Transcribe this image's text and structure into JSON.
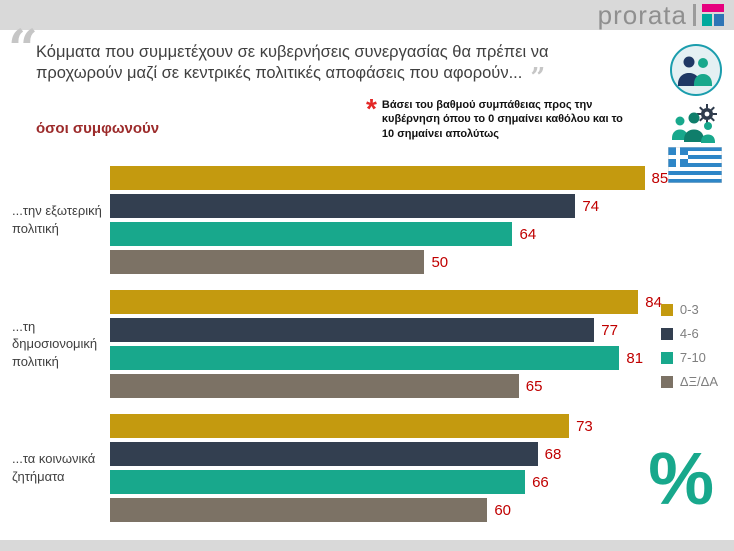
{
  "header": {
    "logo_text": "prorata"
  },
  "quote": {
    "open": "“",
    "close": "”",
    "text": "Κόμματα που συμμετέχουν σε κυβερνήσεις συνεργασίας θα πρέπει να προχωρούν μαζί σε κεντρικές πολιτικές αποφάσεις που αφορούν..."
  },
  "note": {
    "mark": "*",
    "text": "Βάσει του βαθμού συμπάθειας προς την κυβέρνηση όπου το 0 σημαίνει καθόλου και το 10 σημαίνει απολύτως"
  },
  "subtitle": {
    "text": "όσοι συμφωνούν",
    "color": "#9C2B2B"
  },
  "chart_data": {
    "type": "bar",
    "orientation": "horizontal",
    "title": "όσοι συμφωνούν",
    "categories": [
      "...την εξωτερική πολιτική",
      "...τη δημοσιονομική πολιτική",
      "...τα κοινωνικά ζητήματα"
    ],
    "series": [
      {
        "name": "0-3",
        "color": "#C49A0F",
        "values": [
          85,
          84,
          73
        ]
      },
      {
        "name": "4-6",
        "color": "#333F50",
        "values": [
          74,
          77,
          68
        ]
      },
      {
        "name": "7-10",
        "color": "#18A88C",
        "values": [
          64,
          81,
          66
        ]
      },
      {
        "name": "ΔΞ/ΔΑ",
        "color": "#7C7265",
        "values": [
          50,
          65,
          60
        ]
      }
    ],
    "xlim": [
      0,
      100
    ],
    "value_label_color": "#C00000",
    "legend_position": "right",
    "grid": false
  },
  "decor": {
    "percent": "%"
  }
}
